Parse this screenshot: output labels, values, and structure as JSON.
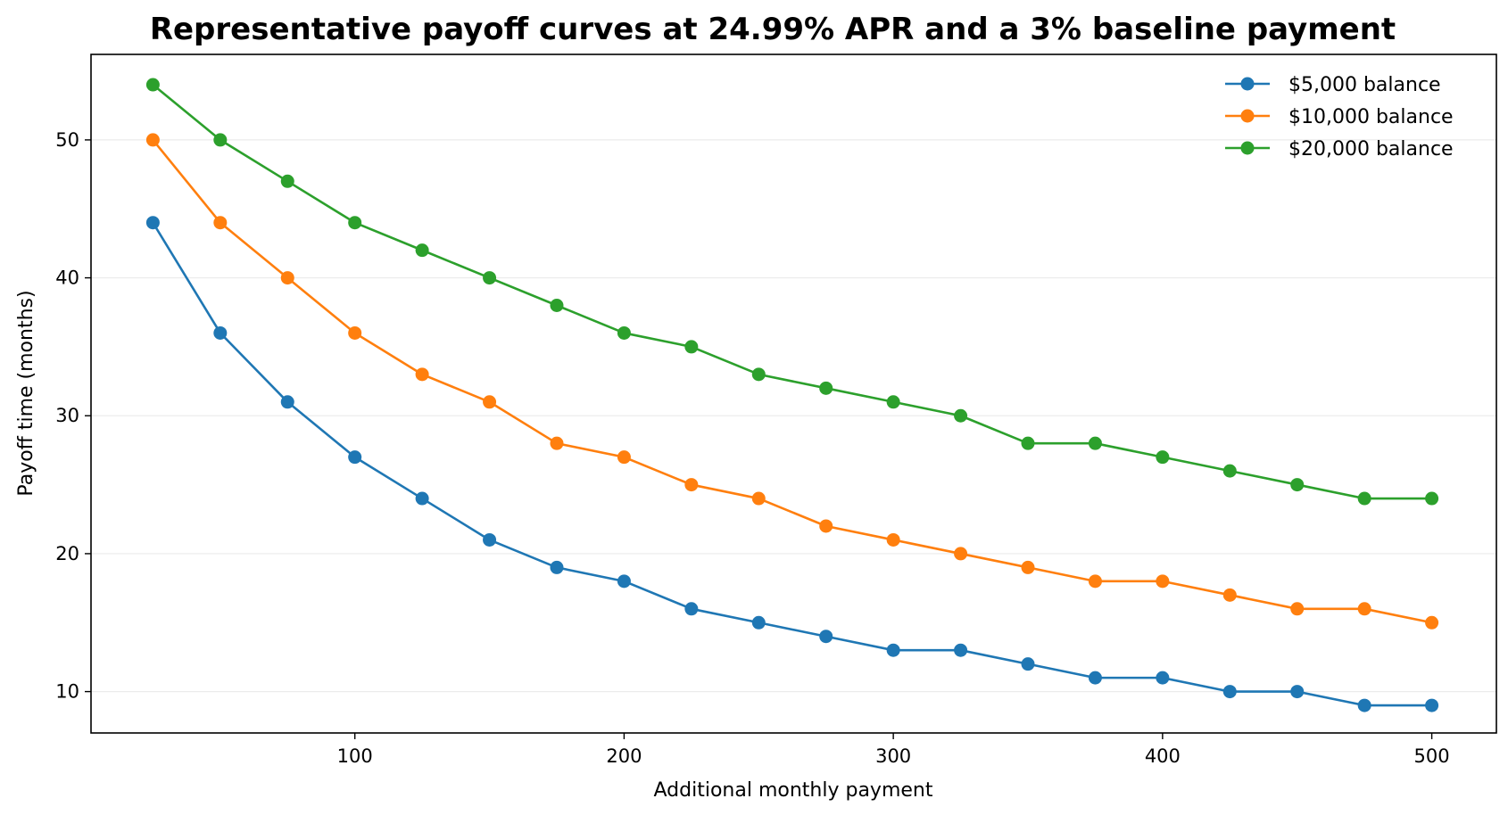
{
  "chart_data": {
    "type": "line",
    "title": "Representative payoff curves at 24.99% APR and a 3% baseline payment",
    "xlabel": "Additional monthly payment",
    "ylabel": "Payoff time (months)",
    "xlim": [
      2,
      524
    ],
    "ylim": [
      7,
      56.2
    ],
    "xticks": [
      100,
      200,
      300,
      400,
      500
    ],
    "yticks": [
      10,
      20,
      30,
      40,
      50
    ],
    "grid": "horizontal",
    "legend_position": "top-right",
    "x": [
      25,
      50,
      75,
      100,
      125,
      150,
      175,
      200,
      225,
      250,
      275,
      300,
      325,
      350,
      375,
      400,
      425,
      450,
      475,
      500
    ],
    "series": [
      {
        "name": "$5,000 balance",
        "color": "#1f77b4",
        "values": [
          44,
          36,
          31,
          27,
          24,
          21,
          19,
          18,
          16,
          15,
          14,
          13,
          13,
          12,
          11,
          11,
          10,
          10,
          9,
          9
        ]
      },
      {
        "name": "$10,000 balance",
        "color": "#ff7f0e",
        "values": [
          50,
          44,
          40,
          36,
          33,
          31,
          28,
          27,
          25,
          24,
          22,
          21,
          20,
          19,
          18,
          18,
          17,
          16,
          16,
          15
        ]
      },
      {
        "name": "$20,000 balance",
        "color": "#2ca02c",
        "values": [
          54,
          50,
          47,
          44,
          42,
          40,
          38,
          36,
          35,
          33,
          32,
          31,
          30,
          28,
          28,
          27,
          26,
          25,
          24,
          24
        ]
      }
    ]
  }
}
